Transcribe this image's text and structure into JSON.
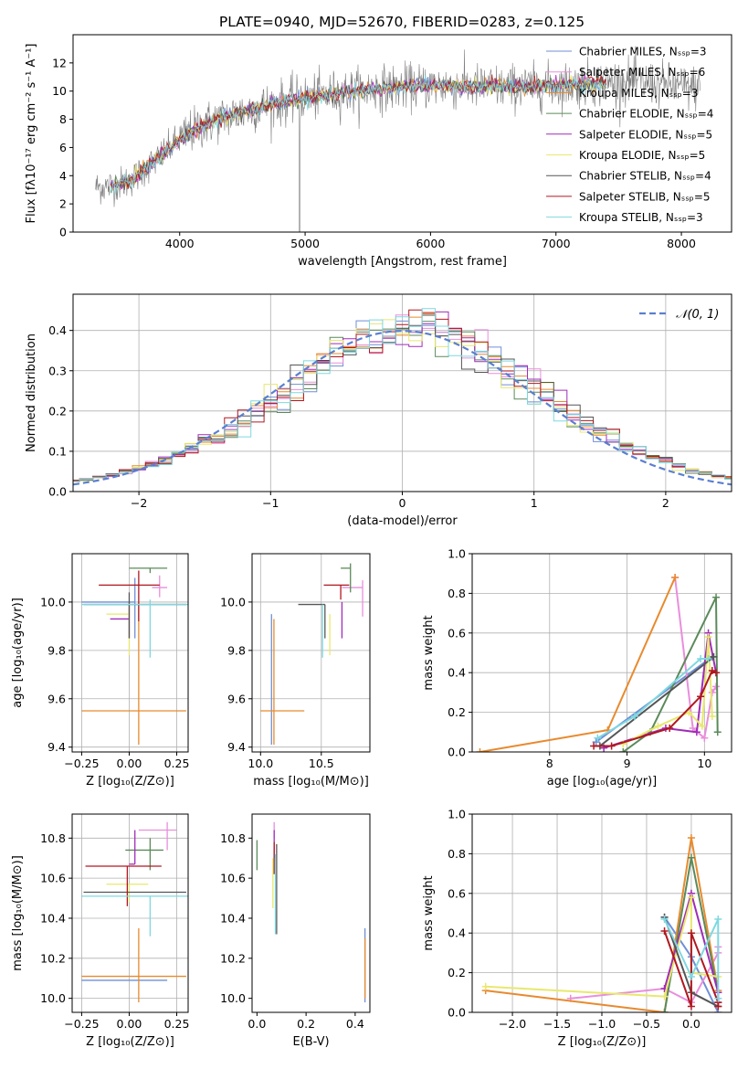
{
  "figure_title": "PLATE=0940, MJD=52670, FIBERID=0283, z=0.125",
  "palette": {
    "Chabrier MILES": "#6f8fd6",
    "Salpeter MILES": "#e98edc",
    "Kroupa MILES": "#e88a2e",
    "Chabrier ELODIE": "#5b8a5b",
    "Salpeter ELODIE": "#a02cb8",
    "Kroupa ELODIE": "#e8e86e",
    "Chabrier STELIB": "#555555",
    "Salpeter STELIB": "#b01820",
    "Kroupa STELIB": "#7ed8e0"
  },
  "chart_data": [
    {
      "id": "spectrum",
      "type": "line",
      "title": "PLATE=0940, MJD=52670, FIBERID=0283, z=0.125",
      "xlabel": "wavelength [Angstrom, rest frame]",
      "ylabel": "Flux [fλ10⁻¹⁷ erg cm⁻² s⁻¹ A⁻¹]",
      "xlim": [
        3150,
        8400
      ],
      "ylim": [
        0,
        14
      ],
      "xticks": [
        4000,
        5000,
        6000,
        7000,
        8000
      ],
      "yticks": [
        0,
        2,
        4,
        6,
        8,
        10,
        12
      ],
      "grid": false,
      "legend_position": "right",
      "legend": [
        "Chabrier MILES, Nₛₛₚ=3",
        "Salpeter MILES, Nₛₛₚ=6",
        "Kroupa MILES, Nₛₛₚ=3",
        "Chabrier ELODIE, Nₛₛₚ=4",
        "Salpeter ELODIE, Nₛₛₚ=5",
        "Kroupa ELODIE, Nₛₛₚ=5",
        "Chabrier STELIB, Nₛₛₚ=4",
        "Salpeter STELIB, Nₛₛₚ=5",
        "Kroupa STELIB, Nₛₛₚ=3"
      ],
      "continuum": {
        "x": [
          3400,
          3600,
          3800,
          3950,
          4100,
          4300,
          4500,
          4700,
          5000,
          5300,
          5600,
          6000,
          6400,
          6800,
          7200,
          7600,
          8000,
          8150
        ],
        "y": [
          3.2,
          3.6,
          5.0,
          6.2,
          7.2,
          8.0,
          8.5,
          9.0,
          9.5,
          9.9,
          10.2,
          10.4,
          10.3,
          10.3,
          10.5,
          10.7,
          10.3,
          10.2
        ]
      },
      "noisy_range": [
        3330,
        8150
      ],
      "noise_amplitude": 1.0,
      "model_range": [
        3450,
        7400
      ]
    },
    {
      "id": "residuals",
      "type": "histogram",
      "xlabel": "(data-model)/error",
      "ylabel": "Normed distribution",
      "xlim": [
        -2.5,
        2.5
      ],
      "ylim": [
        0,
        0.49
      ],
      "xticks": [
        -2,
        -1,
        0,
        1,
        2
      ],
      "yticks": [
        0,
        0.1,
        0.2,
        0.3,
        0.4
      ],
      "grid": true,
      "legend_position": "top-right",
      "legend": [
        "𝒩(0, 1)"
      ],
      "bin_width": 0.1,
      "reference_curve": "normal(0,1)"
    },
    {
      "id": "age-vs-Z",
      "type": "errorbar",
      "xlabel": "Z [log₁₀(Z/Z⊙)]",
      "ylabel": "age  [log₁₀(age/yr)]",
      "xlim": [
        -0.3,
        0.31
      ],
      "ylim": [
        9.38,
        10.2
      ],
      "xticks": [
        -0.25,
        0.0,
        0.25
      ],
      "yticks": [
        9.4,
        9.6,
        9.8,
        10.0
      ],
      "grid": true,
      "points": [
        {
          "model": "Chabrier MILES",
          "x": 0.03,
          "xerr": [
            0.28,
            0.0
          ],
          "y": 10.0,
          "yerr": [
            0.15,
            0.1
          ]
        },
        {
          "model": "Salpeter MILES",
          "x": 0.16,
          "xerr": [
            0.04,
            0.04
          ],
          "y": 10.06,
          "yerr": [
            0.04,
            0.05
          ]
        },
        {
          "model": "Kroupa MILES",
          "x": 0.05,
          "xerr": [
            0.3,
            0.25
          ],
          "y": 9.55,
          "yerr": [
            0.14,
            0.45
          ]
        },
        {
          "model": "Chabrier ELODIE",
          "x": 0.11,
          "xerr": [
            0.11,
            0.09
          ],
          "y": 10.14,
          "yerr": [
            0.02,
            0.0
          ]
        },
        {
          "model": "Salpeter ELODIE",
          "x": 0.0,
          "xerr": [
            0.1,
            0.0
          ],
          "y": 9.93,
          "yerr": [
            0.08,
            0.07
          ]
        },
        {
          "model": "Kroupa ELODIE",
          "x": 0.0,
          "xerr": [
            0.12,
            0.0
          ],
          "y": 9.95,
          "yerr": [
            0.17,
            0.05
          ]
        },
        {
          "model": "Chabrier STELIB",
          "x": 0.0,
          "xerr": [
            0.24,
            0.3
          ],
          "y": 9.99,
          "yerr": [
            0.14,
            0.05
          ]
        },
        {
          "model": "Salpeter STELIB",
          "x": 0.05,
          "xerr": [
            0.21,
            0.11
          ],
          "y": 10.07,
          "yerr": [
            0.15,
            0.06
          ]
        },
        {
          "model": "Kroupa STELIB",
          "x": 0.11,
          "xerr": [
            0.36,
            0.2
          ],
          "y": 9.99,
          "yerr": [
            0.22,
            0.02
          ]
        }
      ]
    },
    {
      "id": "age-vs-mass",
      "type": "errorbar",
      "xlabel": "mass [log₁₀(M/M⊙)]",
      "ylabel": "",
      "xlim": [
        9.93,
        10.9
      ],
      "ylim": [
        9.38,
        10.2
      ],
      "xticks": [
        10.0,
        10.5
      ],
      "yticks": [
        9.4,
        9.6,
        9.8,
        10.0
      ],
      "grid": true,
      "points": [
        {
          "model": "Chabrier MILES",
          "x": 10.09,
          "xerr": [
            0.0,
            0.0
          ],
          "y": 9.55,
          "yerr": [
            0.14,
            0.4
          ]
        },
        {
          "model": "Salpeter MILES",
          "x": 10.84,
          "xerr": [
            0.17,
            0.0
          ],
          "y": 10.06,
          "yerr": [
            0.12,
            0.03
          ]
        },
        {
          "model": "Kroupa MILES",
          "x": 10.11,
          "xerr": [
            0.11,
            0.25
          ],
          "y": 9.55,
          "yerr": [
            0.14,
            0.38
          ]
        },
        {
          "model": "Chabrier ELODIE",
          "x": 10.74,
          "xerr": [
            0.08,
            0.0
          ],
          "y": 10.14,
          "yerr": [
            0.1,
            0.02
          ]
        },
        {
          "model": "Salpeter ELODIE",
          "x": 10.67,
          "xerr": [
            0.0,
            0.0
          ],
          "y": 9.93,
          "yerr": [
            0.08,
            0.07
          ]
        },
        {
          "model": "Kroupa ELODIE",
          "x": 10.57,
          "xerr": [
            0.0,
            0.0
          ],
          "y": 9.95,
          "yerr": [
            0.17,
            0.0
          ]
        },
        {
          "model": "Chabrier STELIB",
          "x": 10.53,
          "xerr": [
            0.22,
            0.0
          ],
          "y": 9.99,
          "yerr": [
            0.14,
            0.0
          ]
        },
        {
          "model": "Salpeter STELIB",
          "x": 10.66,
          "xerr": [
            0.14,
            0.07
          ],
          "y": 10.07,
          "yerr": [
            0.06,
            0.0
          ]
        },
        {
          "model": "Kroupa STELIB",
          "x": 10.51,
          "xerr": [
            0.0,
            0.0
          ],
          "y": 9.99,
          "yerr": [
            0.22,
            0.0
          ]
        }
      ]
    },
    {
      "id": "weight-vs-age",
      "type": "line",
      "xlabel": "age  [log₁₀(age/yr)]",
      "ylabel": "mass weight",
      "xlim": [
        7.0,
        10.35
      ],
      "ylim": [
        0,
        1.0
      ],
      "xticks": [
        8,
        9,
        10
      ],
      "yticks": [
        0,
        0.2,
        0.4,
        0.6,
        0.8,
        1.0
      ],
      "grid": true,
      "series": [
        {
          "model": "Chabrier MILES",
          "x": [
            8.6,
            10.1
          ],
          "y": [
            0.05,
            0.48
          ]
        },
        {
          "model": "Salpeter MILES",
          "x": [
            9.62,
            9.85,
            10.0,
            10.1,
            10.15
          ],
          "y": [
            0.88,
            0.12,
            0.07,
            0.3,
            0.33
          ]
        },
        {
          "model": "Kroupa MILES",
          "x": [
            7.1,
            8.75,
            9.62
          ],
          "y": [
            0.0,
            0.11,
            0.88
          ]
        },
        {
          "model": "Chabrier ELODIE",
          "x": [
            8.95,
            9.3,
            10.15,
            10.17
          ],
          "y": [
            0.0,
            0.1,
            0.78,
            0.1
          ]
        },
        {
          "model": "Salpeter ELODIE",
          "x": [
            8.7,
            9.5,
            9.9,
            10.05,
            10.15
          ],
          "y": [
            0.02,
            0.12,
            0.1,
            0.6,
            0.4
          ]
        },
        {
          "model": "Kroupa ELODIE",
          "x": [
            8.95,
            9.4,
            9.8,
            9.97,
            10.05,
            10.1
          ],
          "y": [
            0.04,
            0.13,
            0.2,
            0.13,
            0.58,
            0.18
          ]
        },
        {
          "model": "Chabrier STELIB",
          "x": [
            8.65,
            10.12
          ],
          "y": [
            0.03,
            0.48
          ]
        },
        {
          "model": "Salpeter STELIB",
          "x": [
            8.57,
            8.8,
            9.55,
            9.95,
            10.1,
            10.15
          ],
          "y": [
            0.03,
            0.03,
            0.12,
            0.28,
            0.41,
            0.4
          ]
        },
        {
          "model": "Kroupa STELIB",
          "x": [
            8.62,
            9.1,
            9.95,
            10.05
          ],
          "y": [
            0.07,
            0.18,
            0.47,
            0.47
          ]
        }
      ]
    },
    {
      "id": "mass-vs-Z",
      "type": "errorbar",
      "xlabel": "Z [log₁₀(Z/Z⊙)]",
      "ylabel": "mass [log₁₀(M/M⊙)]",
      "xlim": [
        -0.3,
        0.31
      ],
      "ylim": [
        9.93,
        10.92
      ],
      "xticks": [
        -0.25,
        0.0,
        0.25
      ],
      "yticks": [
        10.0,
        10.2,
        10.4,
        10.6,
        10.8
      ],
      "grid": true,
      "points": [
        {
          "model": "Chabrier MILES",
          "x": 0.05,
          "xerr": [
            0.3,
            0.15
          ],
          "y": 10.09,
          "yerr": [
            0.0,
            0.0
          ]
        },
        {
          "model": "Salpeter MILES",
          "x": 0.2,
          "xerr": [
            0.15,
            0.05
          ],
          "y": 10.84,
          "yerr": [
            0.1,
            0.04
          ]
        },
        {
          "model": "Kroupa MILES",
          "x": 0.05,
          "xerr": [
            0.3,
            0.25
          ],
          "y": 10.11,
          "yerr": [
            0.13,
            0.24
          ]
        },
        {
          "model": "Chabrier ELODIE",
          "x": 0.11,
          "xerr": [
            0.13,
            0.07
          ],
          "y": 10.74,
          "yerr": [
            0.1,
            0.06
          ]
        },
        {
          "model": "Salpeter ELODIE",
          "x": 0.03,
          "xerr": [
            0.03,
            0.0
          ],
          "y": 10.67,
          "yerr": [
            0.0,
            0.17
          ]
        },
        {
          "model": "Kroupa ELODIE",
          "x": 0.0,
          "xerr": [
            0.12,
            0.1
          ],
          "y": 10.57,
          "yerr": [
            0.09,
            0.0
          ]
        },
        {
          "model": "Chabrier STELIB",
          "x": 0.0,
          "xerr": [
            0.24,
            0.3
          ],
          "y": 10.53,
          "yerr": [
            0.0,
            0.0
          ]
        },
        {
          "model": "Salpeter STELIB",
          "x": -0.01,
          "xerr": [
            0.22,
            0.18
          ],
          "y": 10.66,
          "yerr": [
            0.2,
            0.0
          ]
        },
        {
          "model": "Kroupa STELIB",
          "x": 0.11,
          "xerr": [
            0.36,
            0.2
          ],
          "y": 10.51,
          "yerr": [
            0.2,
            0.0
          ]
        }
      ]
    },
    {
      "id": "mass-vs-EBV",
      "type": "errorbar",
      "xlabel": "E(B-V)",
      "ylabel": "",
      "xlim": [
        -0.02,
        0.46
      ],
      "ylim": [
        9.93,
        10.92
      ],
      "xticks": [
        0.0,
        0.2,
        0.4
      ],
      "yticks": [
        10.0,
        10.2,
        10.4,
        10.6,
        10.8
      ],
      "grid": false,
      "points": [
        {
          "model": "Chabrier MILES",
          "x": 0.44,
          "xerr": [
            0.0,
            0.0
          ],
          "y": 10.2,
          "yerr": [
            0.22,
            0.15
          ]
        },
        {
          "model": "Salpeter MILES",
          "x": 0.07,
          "xerr": [
            0.0,
            0.0
          ],
          "y": 10.84,
          "yerr": [
            0.04,
            0.04
          ]
        },
        {
          "model": "Kroupa MILES",
          "x": 0.44,
          "xerr": [
            0.0,
            0.0
          ],
          "y": 10.15,
          "yerr": [
            0.15,
            0.15
          ]
        },
        {
          "model": "Chabrier ELODIE",
          "x": 0.0,
          "xerr": [
            0.0,
            0.0
          ],
          "y": 10.72,
          "yerr": [
            0.08,
            0.07
          ]
        },
        {
          "model": "Salpeter ELODIE",
          "x": 0.07,
          "xerr": [
            0.0,
            0.0
          ],
          "y": 10.74,
          "yerr": [
            0.04,
            0.1
          ]
        },
        {
          "model": "Kroupa ELODIE",
          "x": 0.065,
          "xerr": [
            0.0,
            0.0
          ],
          "y": 10.6,
          "yerr": [
            0.15,
            0.1
          ]
        },
        {
          "model": "Chabrier STELIB",
          "x": 0.08,
          "xerr": [
            0.0,
            0.0
          ],
          "y": 10.52,
          "yerr": [
            0.2,
            0.25
          ]
        },
        {
          "model": "Salpeter STELIB",
          "x": 0.07,
          "xerr": [
            0.0,
            0.0
          ],
          "y": 10.7,
          "yerr": [
            0.08,
            0.08
          ]
        },
        {
          "model": "Kroupa STELIB",
          "x": 0.075,
          "xerr": [
            0.0,
            0.0
          ],
          "y": 10.5,
          "yerr": [
            0.18,
            0.22
          ]
        }
      ]
    },
    {
      "id": "weight-vs-Z",
      "type": "line",
      "xlabel": "Z [log₁₀(Z/Z⊙)]",
      "ylabel": "mass weight",
      "xlim": [
        -2.45,
        0.45
      ],
      "ylim": [
        0,
        1.0
      ],
      "xticks": [
        -2.0,
        -1.5,
        -1.0,
        -0.5,
        0.0
      ],
      "yticks": [
        0,
        0.2,
        0.4,
        0.6,
        0.8,
        1.0
      ],
      "grid": true,
      "series": [
        {
          "model": "Chabrier MILES",
          "x": [
            -0.3,
            0.0,
            0.3
          ],
          "y": [
            0.48,
            0.28,
            0.0
          ]
        },
        {
          "model": "Salpeter MILES",
          "x": [
            -1.35,
            -0.3,
            0.0,
            0.3,
            0.3
          ],
          "y": [
            0.07,
            0.12,
            0.05,
            0.3,
            0.33
          ]
        },
        {
          "model": "Kroupa MILES",
          "x": [
            -2.3,
            -0.3,
            0.0,
            0.3
          ],
          "y": [
            0.11,
            0.0,
            0.88,
            0.11
          ]
        },
        {
          "model": "Chabrier ELODIE",
          "x": [
            -0.3,
            0.0,
            0.3
          ],
          "y": [
            0.0,
            0.78,
            0.1
          ]
        },
        {
          "model": "Salpeter ELODIE",
          "x": [
            -0.3,
            0.0,
            0.3,
            0.3
          ],
          "y": [
            0.12,
            0.6,
            0.1,
            0.05
          ]
        },
        {
          "model": "Kroupa ELODIE",
          "x": [
            -2.3,
            -0.3,
            0.0,
            0.0,
            0.3
          ],
          "y": [
            0.13,
            0.08,
            0.58,
            0.2,
            0.18
          ]
        },
        {
          "model": "Chabrier STELIB",
          "x": [
            -0.3,
            0.0,
            0.3
          ],
          "y": [
            0.48,
            0.1,
            0.03
          ]
        },
        {
          "model": "Salpeter STELIB",
          "x": [
            -0.3,
            0.0,
            0.0,
            0.3,
            0.3
          ],
          "y": [
            0.41,
            0.03,
            0.4,
            0.05,
            0.03
          ]
        },
        {
          "model": "Kroupa STELIB",
          "x": [
            -0.3,
            0.0,
            0.3,
            0.3
          ],
          "y": [
            0.47,
            0.18,
            0.47,
            0.07
          ]
        }
      ]
    }
  ]
}
